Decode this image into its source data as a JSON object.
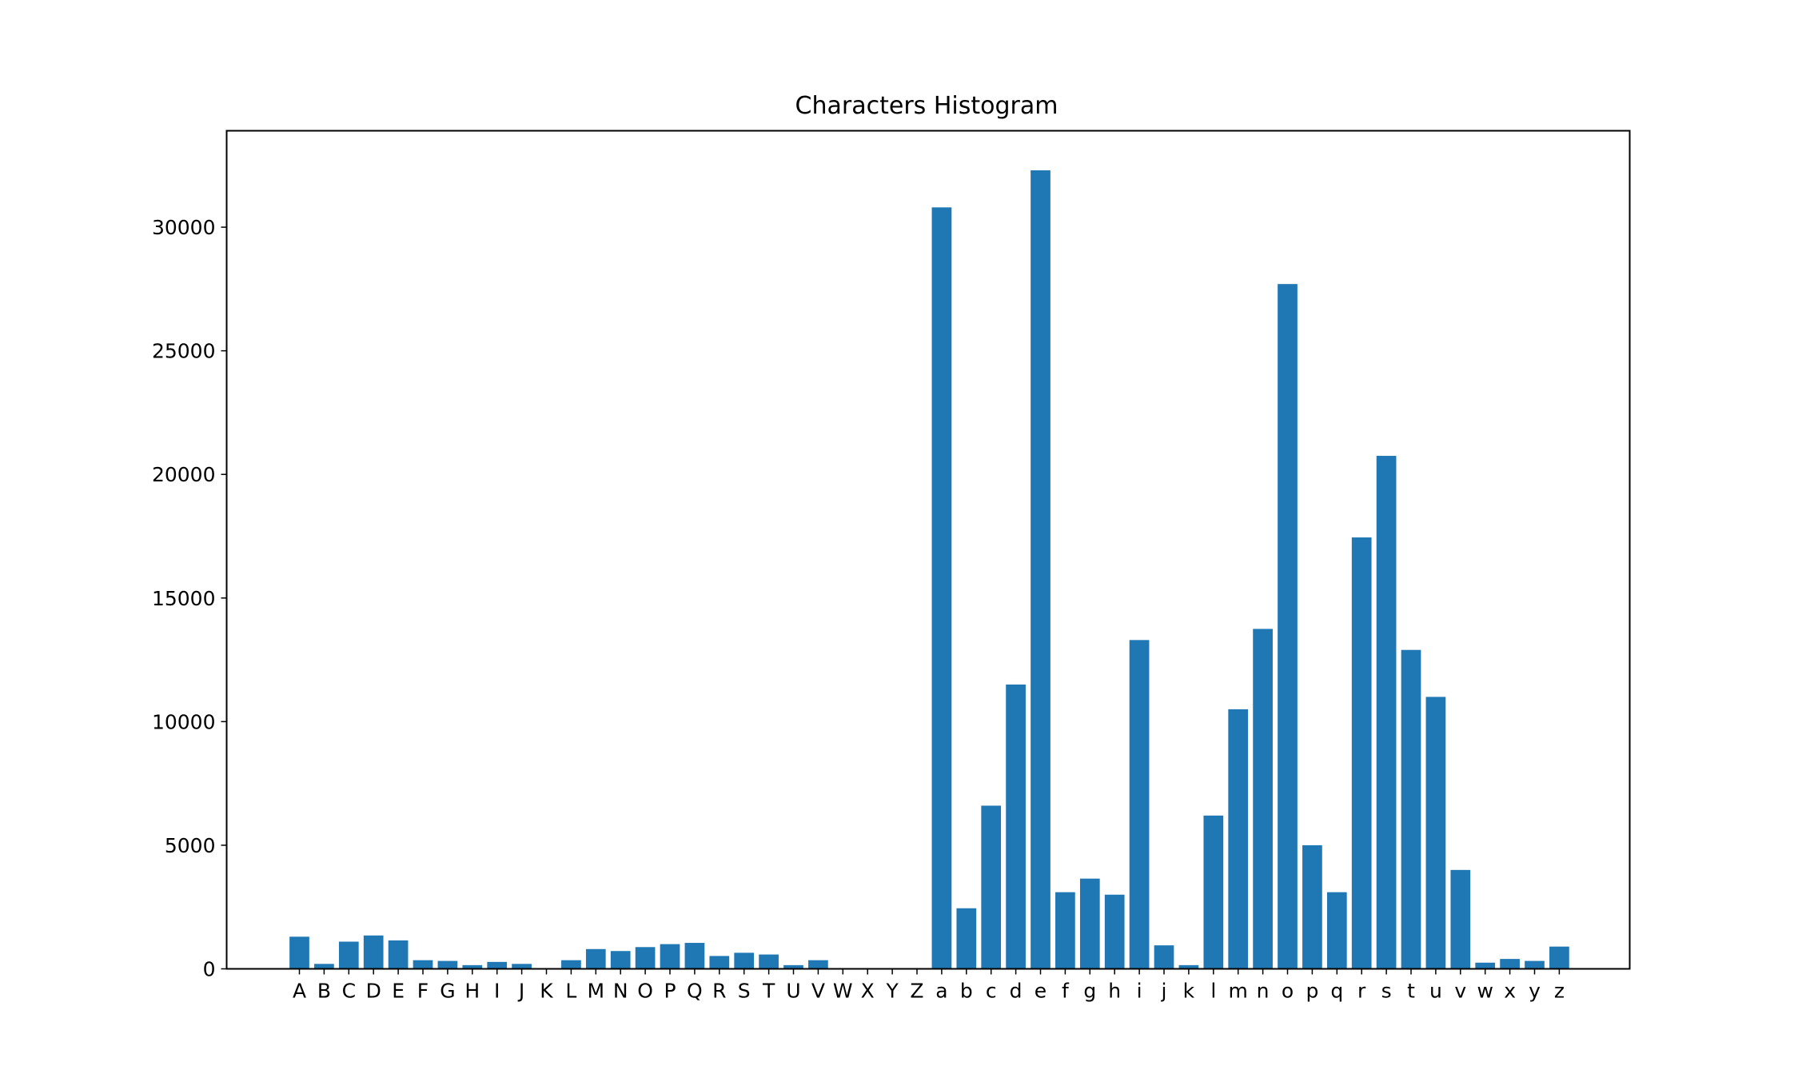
{
  "chart_data": {
    "type": "bar",
    "title": "Characters Histogram",
    "xlabel": "",
    "ylabel": "",
    "ylim": [
      0,
      33900
    ],
    "yticks": [
      0,
      5000,
      10000,
      15000,
      20000,
      25000,
      30000
    ],
    "grid": false,
    "bar_color": "#1f77b4",
    "categories": [
      "A",
      "B",
      "C",
      "D",
      "E",
      "F",
      "G",
      "H",
      "I",
      "J",
      "K",
      "L",
      "M",
      "N",
      "O",
      "P",
      "Q",
      "R",
      "S",
      "T",
      "U",
      "V",
      "W",
      "X",
      "Y",
      "Z",
      "a",
      "b",
      "c",
      "d",
      "e",
      "f",
      "g",
      "h",
      "i",
      "j",
      "k",
      "l",
      "m",
      "n",
      "o",
      "p",
      "q",
      "r",
      "s",
      "t",
      "u",
      "v",
      "w",
      "x",
      "y",
      "z"
    ],
    "values": [
      1300,
      200,
      1100,
      1350,
      1150,
      350,
      320,
      150,
      280,
      200,
      20,
      350,
      800,
      720,
      880,
      1000,
      1050,
      520,
      650,
      580,
      150,
      350,
      0,
      0,
      0,
      0,
      30800,
      2450,
      6600,
      11500,
      32300,
      3100,
      3650,
      3000,
      13300,
      950,
      150,
      6200,
      10500,
      13750,
      27700,
      5000,
      3100,
      17450,
      20750,
      12900,
      11000,
      4000,
      250,
      400,
      320,
      900
    ]
  }
}
